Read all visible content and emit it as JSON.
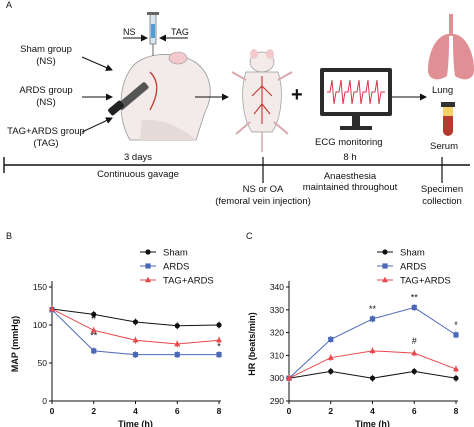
{
  "panel_a": {
    "letter": "A",
    "groups": [
      "Sham group",
      "(NS)",
      "ARDS group",
      "(NS)",
      "TAG+ARDS group",
      "(TAG)"
    ],
    "syringe_labels": {
      "left": "NS",
      "right": "TAG"
    },
    "plus": "+",
    "ecg_label": "ECG monitoring",
    "organ_labels": {
      "lung": "Lung",
      "serum": "Serum"
    },
    "timeline": {
      "segment1_top": "3 days",
      "segment1_bottom": "Continuous gavage",
      "segment2_top": "8 h",
      "segment2_middle": "Anaesthesia",
      "segment2_bottom": "maintained throughout",
      "event1_line1": "NS or OA",
      "event1_line2": "(femoral vein  injection)",
      "end_line1": "Specimen",
      "end_line2": "collection"
    },
    "colors": {
      "vessel": "#c0392b",
      "lung": "#e08f94",
      "monitor": "#2b2b2b",
      "ecg": "#d9364a"
    }
  },
  "chart_data": [
    {
      "panel": "B",
      "type": "line",
      "x": [
        0,
        2,
        4,
        6,
        8
      ],
      "xlabel": "Time (h)",
      "ylabel": "MAP (mmHg)",
      "ylim": [
        0,
        150
      ],
      "yticks": [
        0,
        50,
        100,
        150
      ],
      "xticks": [
        0,
        2,
        4,
        6,
        8
      ],
      "legend_position": "top-right",
      "series": [
        {
          "name": "Sham",
          "color": "#111111",
          "marker": "circle",
          "values": [
            121,
            114,
            104,
            99,
            100
          ]
        },
        {
          "name": "ARDS",
          "color": "#4b67b8",
          "marker": "square",
          "values": [
            120,
            66,
            61,
            61,
            61
          ]
        },
        {
          "name": "TAG+ARDS",
          "color": "#e8474c",
          "marker": "triangle",
          "values": [
            121,
            93,
            80,
            75,
            80
          ]
        }
      ],
      "annotations": [
        {
          "x": 2,
          "y": 82,
          "text": "**",
          "color": "#111111"
        },
        {
          "x": 2,
          "y": 107,
          "text": "#",
          "color": "#111111"
        },
        {
          "x": 8,
          "y": 68,
          "text": "*",
          "color": "#111111"
        }
      ]
    },
    {
      "panel": "C",
      "type": "line",
      "x": [
        0,
        2,
        4,
        6,
        8
      ],
      "xlabel": "Time (h)",
      "ylabel": "HR (beats/min)",
      "ylim": [
        290,
        340
      ],
      "yticks": [
        290,
        300,
        310,
        320,
        330,
        340
      ],
      "xticks": [
        0,
        2,
        4,
        6,
        8
      ],
      "legend_position": "top-right",
      "series": [
        {
          "name": "Sham",
          "color": "#111111",
          "marker": "circle",
          "values": [
            300,
            303,
            300,
            303,
            300
          ]
        },
        {
          "name": "ARDS",
          "color": "#4b67b8",
          "marker": "square",
          "values": [
            300,
            317,
            326,
            331,
            319
          ]
        },
        {
          "name": "TAG+ARDS",
          "color": "#e8474c",
          "marker": "triangle",
          "values": [
            300,
            309,
            312,
            311,
            304
          ]
        }
      ],
      "annotations": [
        {
          "x": 4,
          "y": 329,
          "text": "**",
          "color": "#111111"
        },
        {
          "x": 6,
          "y": 334,
          "text": "**",
          "color": "#111111"
        },
        {
          "x": 6,
          "y": 315,
          "text": "#",
          "color": "#111111"
        },
        {
          "x": 8,
          "y": 322,
          "text": "*",
          "color": "#111111"
        }
      ]
    }
  ]
}
